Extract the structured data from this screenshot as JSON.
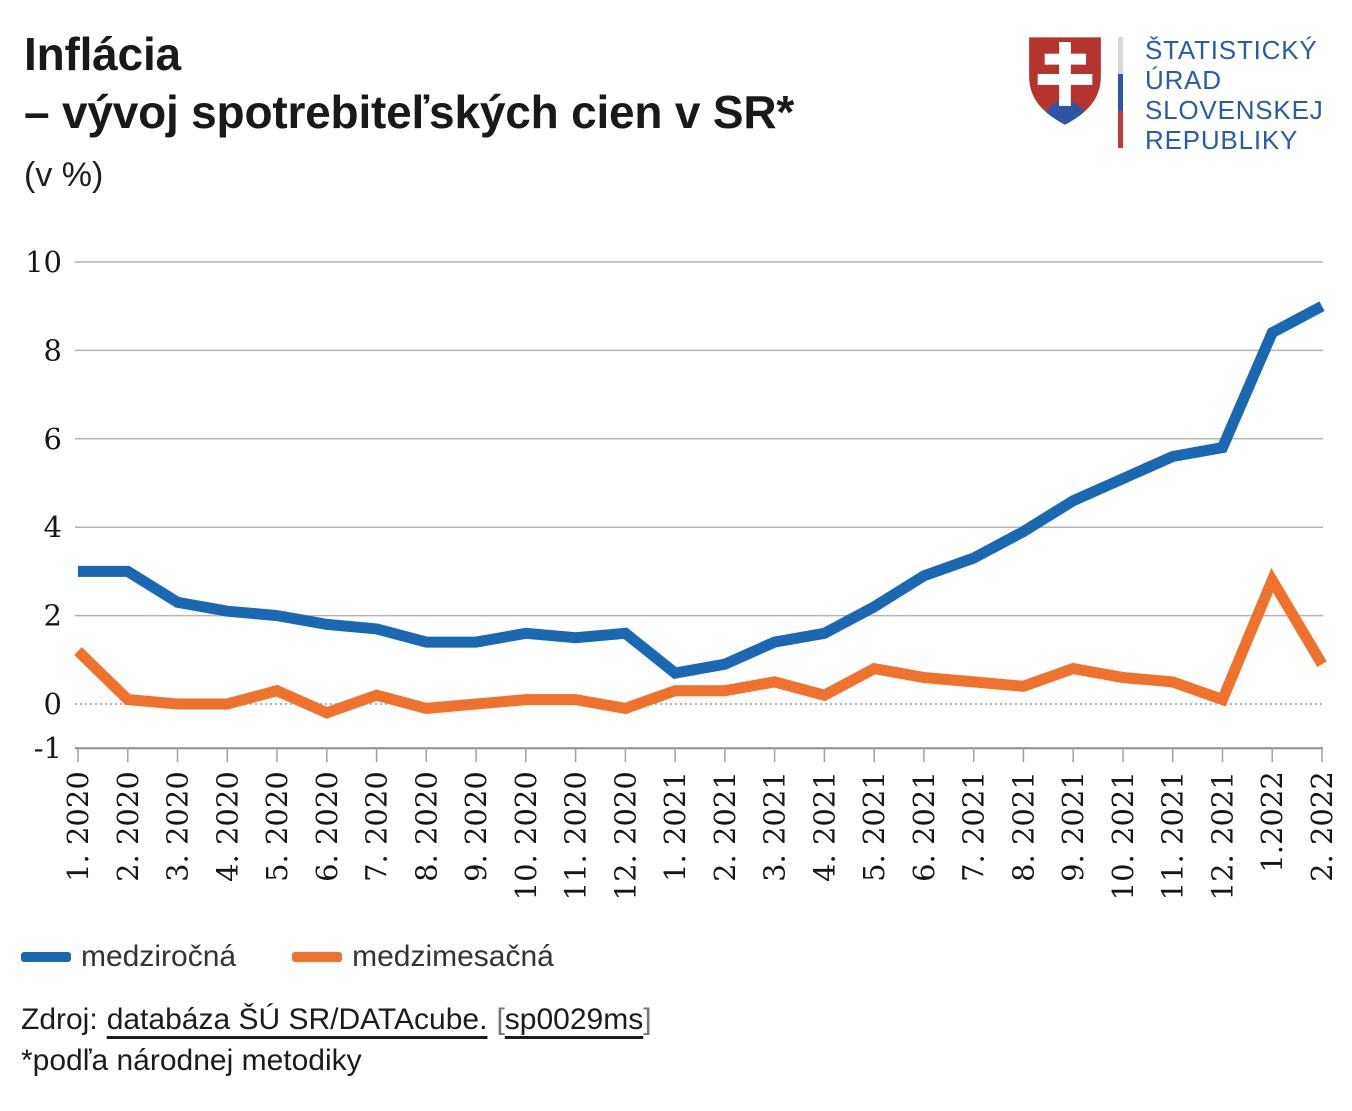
{
  "header": {
    "title_line1": "Inflácia",
    "title_line2": "– vývoj spotrebiteľských cien v SR*",
    "subtitle": "(v %)"
  },
  "logo": {
    "org_lines": [
      "ŠTATISTICKÝ",
      "ÚRAD",
      "SLOVENSKEJ",
      "REPUBLIKY"
    ],
    "text_color": "#2a5ba7",
    "shield": {
      "field_red": "#b5352e",
      "cross_white": "#ffffff",
      "hills_blue": "#2e56a5"
    },
    "flag_stripe_colors": [
      "#d9d9d9",
      "#2e56a5",
      "#c23b35"
    ]
  },
  "chart_data": {
    "type": "line",
    "title": "Inflácia – vývoj spotrebiteľských cien v SR (v %)",
    "unit": "%",
    "x": [
      "1. 2020",
      "2. 2020",
      "3. 2020",
      "4. 2020",
      "5. 2020",
      "6. 2020",
      "7. 2020",
      "8. 2020",
      "9. 2020",
      "10. 2020",
      "11. 2020",
      "12. 2020",
      "1. 2021",
      "2. 2021",
      "3. 2021",
      "4. 2021",
      "5. 2021",
      "6. 2021",
      "7. 2021",
      "8. 2021",
      "9. 2021",
      "10. 2021",
      "11. 2021",
      "12. 2021",
      "1.2022",
      "2. 2022"
    ],
    "series": [
      {
        "name": "medziročná",
        "color": "#1b68b2",
        "values": [
          3.0,
          3.0,
          2.3,
          2.1,
          2.0,
          1.8,
          1.7,
          1.4,
          1.4,
          1.6,
          1.5,
          1.6,
          0.7,
          0.9,
          1.4,
          1.6,
          2.2,
          2.9,
          3.3,
          3.9,
          4.6,
          5.1,
          5.6,
          5.8,
          8.4,
          9.0
        ]
      },
      {
        "name": "medzimesačná",
        "color": "#ef712c",
        "values": [
          1.2,
          0.1,
          0.0,
          0.0,
          0.3,
          -0.2,
          0.2,
          -0.1,
          0.0,
          0.1,
          0.1,
          -0.1,
          0.3,
          0.3,
          0.5,
          0.2,
          0.8,
          0.6,
          0.5,
          0.4,
          0.8,
          0.6,
          0.5,
          0.1,
          2.8,
          0.9
        ]
      }
    ],
    "ylim": [
      -1,
      10
    ],
    "yticks": [
      10,
      8,
      6,
      4,
      2,
      0,
      -1
    ],
    "grid": "horizontal, zero line dotted",
    "legend_position": "bottom-left"
  },
  "legend": {
    "items": [
      {
        "label": "medziročná",
        "color": "#1b68b2"
      },
      {
        "label": "medzimesačná",
        "color": "#ef712c"
      }
    ]
  },
  "source": {
    "prefix": "Zdroj:",
    "link_text": "databáza ŠÚ SR/DATAcube.",
    "bracket_open": "[",
    "code_text": "sp0029ms",
    "bracket_close": "]"
  },
  "footnote": "*podľa národnej metodiky"
}
